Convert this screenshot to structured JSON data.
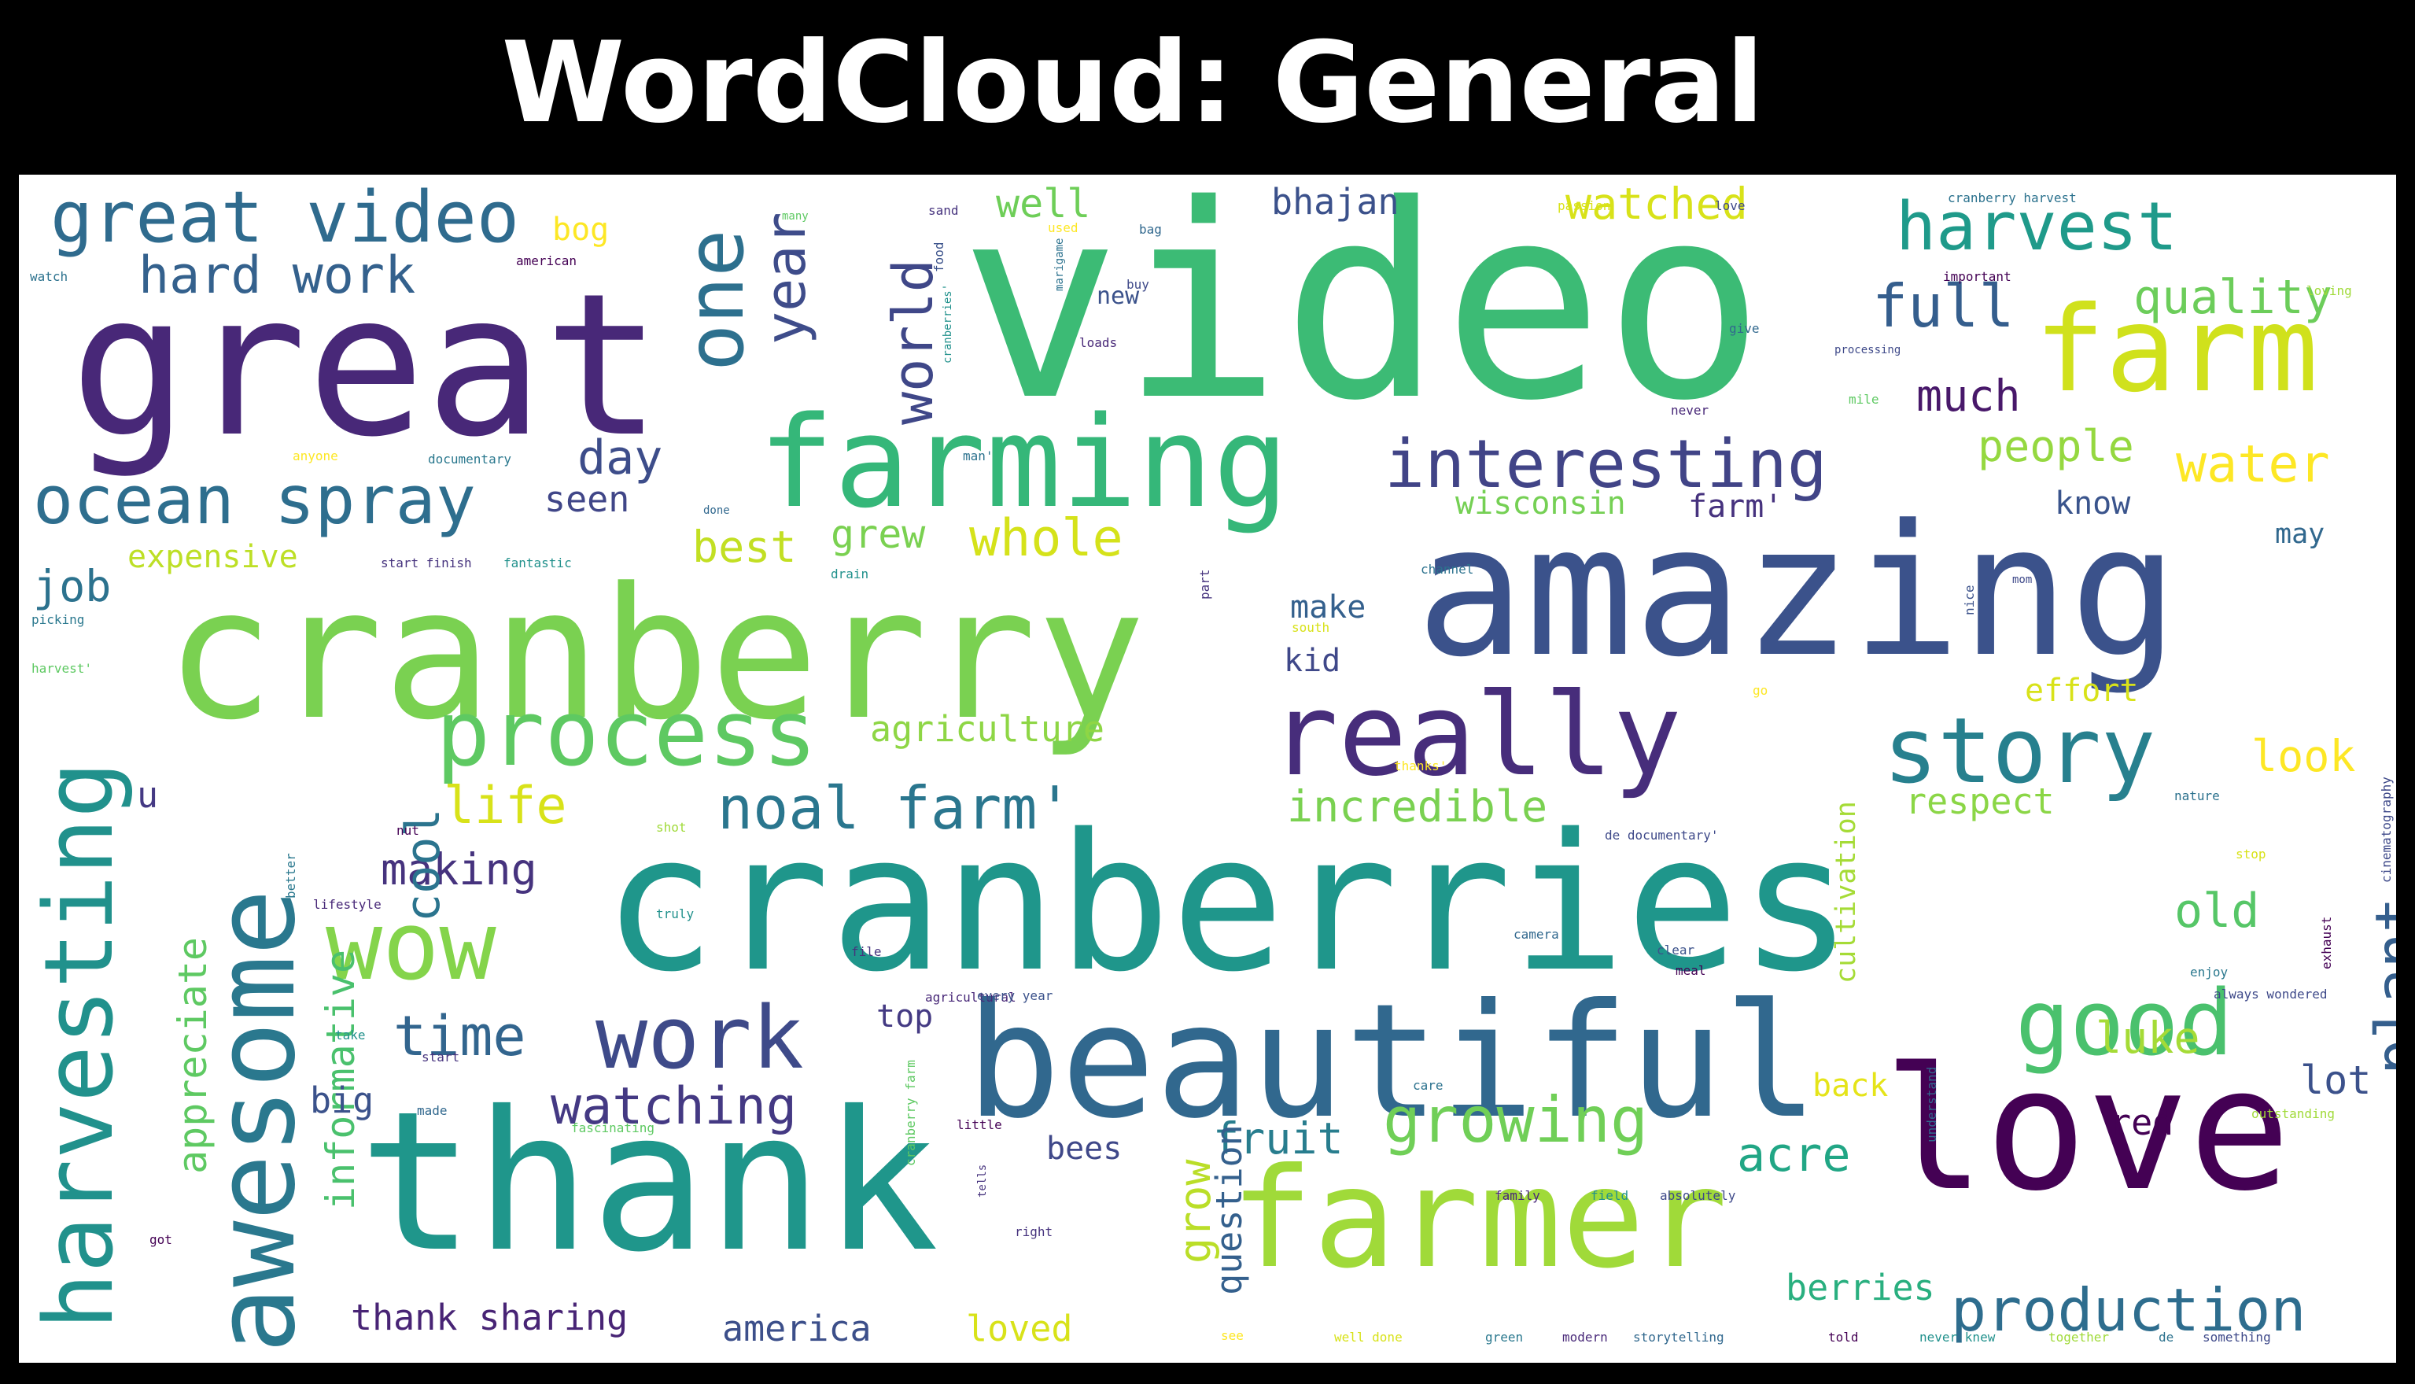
{
  "title": "WordCloud: General",
  "colors": {
    "background": "#000000",
    "panel": "#ffffff",
    "title": "#ffffff"
  },
  "words": [
    {
      "text": "video",
      "size": 340,
      "color": "#3cbb75"
    },
    {
      "text": "great",
      "size": 250,
      "color": "#482878"
    },
    {
      "text": "cranberry",
      "size": 230,
      "color": "#7ad151"
    },
    {
      "text": "amazing",
      "size": 230,
      "color": "#3b528b"
    },
    {
      "text": "cranberries",
      "size": 240,
      "color": "#1f968b"
    },
    {
      "text": "thank",
      "size": 245,
      "color": "#1f968b"
    },
    {
      "text": "beautiful",
      "size": 200,
      "color": "#31688e"
    },
    {
      "text": "love",
      "size": 215,
      "color": "#440154"
    },
    {
      "text": "farmer",
      "size": 175,
      "color": "#a0da39"
    },
    {
      "text": "farming",
      "size": 160,
      "color": "#35b779"
    },
    {
      "text": "really",
      "size": 145,
      "color": "#472d7b"
    },
    {
      "text": "farm",
      "size": 150,
      "color": "#d0e11c"
    },
    {
      "text": "awesome",
      "size": 140,
      "color": "#2a788e"
    },
    {
      "text": "harvesting",
      "size": 120,
      "color": "#21918c"
    },
    {
      "text": "process",
      "size": 115,
      "color": "#5ec962"
    },
    {
      "text": "story",
      "size": 115,
      "color": "#27808e"
    },
    {
      "text": "wow",
      "size": 120,
      "color": "#84d44b"
    },
    {
      "text": "good",
      "size": 115,
      "color": "#4ac16d"
    },
    {
      "text": "work",
      "size": 110,
      "color": "#3e4a89"
    },
    {
      "text": "great video",
      "size": 90,
      "color": "#2f6b8e"
    },
    {
      "text": "one",
      "size": 100,
      "color": "#2d708e"
    },
    {
      "text": "harvest",
      "size": 85,
      "color": "#1f9a8a"
    },
    {
      "text": "interesting",
      "size": 85,
      "color": "#414487"
    },
    {
      "text": "ocean spray",
      "size": 85,
      "color": "#2e6e8e"
    },
    {
      "text": "hard work",
      "size": 65,
      "color": "#34618d"
    },
    {
      "text": "year",
      "size": 70,
      "color": "#3e4c8a"
    },
    {
      "text": "world",
      "size": 70,
      "color": "#3f4788"
    },
    {
      "text": "full",
      "size": 75,
      "color": "#355e8d"
    },
    {
      "text": "quality",
      "size": 60,
      "color": "#6ccd5a"
    },
    {
      "text": "watched",
      "size": 55,
      "color": "#d8e219"
    },
    {
      "text": "well",
      "size": 50,
      "color": "#6ece58"
    },
    {
      "text": "bhajan",
      "size": 45,
      "color": "#3b518b"
    },
    {
      "text": "much",
      "size": 55,
      "color": "#48186a"
    },
    {
      "text": "people",
      "size": 55,
      "color": "#95d840"
    },
    {
      "text": "water",
      "size": 65,
      "color": "#fde725"
    },
    {
      "text": "day",
      "size": 60,
      "color": "#3d4d8a"
    },
    {
      "text": "seen",
      "size": 45,
      "color": "#404688"
    },
    {
      "text": "wisconsin",
      "size": 40,
      "color": "#75d054"
    },
    {
      "text": "farm'",
      "size": 40,
      "color": "#46327e"
    },
    {
      "text": "know",
      "size": 40,
      "color": "#3a548c"
    },
    {
      "text": "job",
      "size": 55,
      "color": "#2c728e"
    },
    {
      "text": "expensive",
      "size": 40,
      "color": "#bddf26"
    },
    {
      "text": "grew",
      "size": 50,
      "color": "#7ad151"
    },
    {
      "text": "best",
      "size": 55,
      "color": "#c2df23"
    },
    {
      "text": "whole",
      "size": 65,
      "color": "#d5e21a"
    },
    {
      "text": "make",
      "size": 40,
      "color": "#34608d"
    },
    {
      "text": "kid",
      "size": 40,
      "color": "#3f4889"
    },
    {
      "text": "effort",
      "size": 40,
      "color": "#d8e219"
    },
    {
      "text": "look",
      "size": 55,
      "color": "#fde725"
    },
    {
      "text": "respect",
      "size": 45,
      "color": "#8bd646"
    },
    {
      "text": "agriculture",
      "size": 45,
      "color": "#8ed645"
    },
    {
      "text": "noal farm'",
      "size": 75,
      "color": "#2a768e"
    },
    {
      "text": "incredible",
      "size": 55,
      "color": "#7ad151"
    },
    {
      "text": "life",
      "size": 65,
      "color": "#d8e219"
    },
    {
      "text": "making",
      "size": 55,
      "color": "#46337e"
    },
    {
      "text": "cool",
      "size": 60,
      "color": "#2b748e"
    },
    {
      "text": "plant",
      "size": 75,
      "color": "#355f8d"
    },
    {
      "text": "old",
      "size": 60,
      "color": "#56c667"
    },
    {
      "text": "time",
      "size": 70,
      "color": "#32658e"
    },
    {
      "text": "watching",
      "size": 65,
      "color": "#443983"
    },
    {
      "text": "top",
      "size": 40,
      "color": "#443a83"
    },
    {
      "text": "luke",
      "size": 55,
      "color": "#a5db36"
    },
    {
      "text": "back",
      "size": 40,
      "color": "#e5e419"
    },
    {
      "text": "lot",
      "size": 50,
      "color": "#3b518b"
    },
    {
      "text": "red",
      "size": 45,
      "color": "#440154"
    },
    {
      "text": "appreciate",
      "size": 50,
      "color": "#5ec962"
    },
    {
      "text": "informative",
      "size": 50,
      "color": "#4ac16d"
    },
    {
      "text": "big",
      "size": 45,
      "color": "#3b528b"
    },
    {
      "text": "fruit",
      "size": 55,
      "color": "#287d8e"
    },
    {
      "text": "growing",
      "size": 80,
      "color": "#70cf57"
    },
    {
      "text": "acre",
      "size": 60,
      "color": "#21a685"
    },
    {
      "text": "bees",
      "size": 40,
      "color": "#3f4889"
    },
    {
      "text": "grow",
      "size": 55,
      "color": "#bade28"
    },
    {
      "text": "question",
      "size": 45,
      "color": "#34608d"
    },
    {
      "text": "thank sharing",
      "size": 45,
      "color": "#482475"
    },
    {
      "text": "america",
      "size": 45,
      "color": "#3c4f8a"
    },
    {
      "text": "loved",
      "size": 45,
      "color": "#d8e219"
    },
    {
      "text": "berries",
      "size": 45,
      "color": "#29af7f"
    },
    {
      "text": "production",
      "size": 75,
      "color": "#2e6d8e"
    },
    {
      "text": "cultivation",
      "size": 35,
      "color": "#a5db36"
    },
    {
      "text": "u",
      "size": 45,
      "color": "#443983"
    },
    {
      "text": "bog",
      "size": 40,
      "color": "#fde725"
    },
    {
      "text": "american",
      "size": 16,
      "color": "#440154"
    },
    {
      "text": "watch",
      "size": 16,
      "color": "#2c728e"
    },
    {
      "text": "many",
      "size": 14,
      "color": "#5ec962"
    },
    {
      "text": "food",
      "size": 16,
      "color": "#3b528b"
    },
    {
      "text": "used",
      "size": 16,
      "color": "#fde725"
    },
    {
      "text": "sand",
      "size": 16,
      "color": "#46337e"
    },
    {
      "text": "bag",
      "size": 16,
      "color": "#31688e"
    },
    {
      "text": "buy",
      "size": 16,
      "color": "#3e4989"
    },
    {
      "text": "new",
      "size": 30,
      "color": "#3b528b"
    },
    {
      "text": "loads",
      "size": 16,
      "color": "#482878"
    },
    {
      "text": "documentary",
      "size": 16,
      "color": "#2a788e"
    },
    {
      "text": "anyone",
      "size": 16,
      "color": "#fde725"
    },
    {
      "text": "done",
      "size": 14,
      "color": "#31688e"
    },
    {
      "text": "start finish",
      "size": 16,
      "color": "#46337e"
    },
    {
      "text": "fantastic",
      "size": 16,
      "color": "#21918c"
    },
    {
      "text": "passion",
      "size": 16,
      "color": "#d8e219"
    },
    {
      "text": "love",
      "size": 16,
      "color": "#3e4989"
    },
    {
      "text": "cranberry harvest",
      "size": 16,
      "color": "#2c728e"
    },
    {
      "text": "important",
      "size": 16,
      "color": "#440154"
    },
    {
      "text": "give",
      "size": 16,
      "color": "#31688e"
    },
    {
      "text": "processing",
      "size": 14,
      "color": "#3e4989"
    },
    {
      "text": "mile",
      "size": 16,
      "color": "#5ec962"
    },
    {
      "text": "never",
      "size": 16,
      "color": "#482878"
    },
    {
      "text": "loving",
      "size": 16,
      "color": "#a0da39"
    },
    {
      "text": "may",
      "size": 35,
      "color": "#31688e"
    },
    {
      "text": "channel",
      "size": 16,
      "color": "#2c728e"
    },
    {
      "text": "south",
      "size": 16,
      "color": "#d8e219"
    },
    {
      "text": "drain",
      "size": 16,
      "color": "#21918c"
    },
    {
      "text": "mom",
      "size": 14,
      "color": "#3e4989"
    },
    {
      "text": "picking",
      "size": 16,
      "color": "#2a788e"
    },
    {
      "text": "harvest'",
      "size": 16,
      "color": "#5ec962"
    },
    {
      "text": "go",
      "size": 16,
      "color": "#fde725"
    },
    {
      "text": "thanks'",
      "size": 16,
      "color": "#fde725"
    },
    {
      "text": "nature",
      "size": 16,
      "color": "#2c728e"
    },
    {
      "text": "shot",
      "size": 16,
      "color": "#a0da39"
    },
    {
      "text": "nut",
      "size": 16,
      "color": "#440154"
    },
    {
      "text": "de documentary'",
      "size": 16,
      "color": "#3e4989"
    },
    {
      "text": "stop",
      "size": 16,
      "color": "#d8e219"
    },
    {
      "text": "lifestyle",
      "size": 16,
      "color": "#482878"
    },
    {
      "text": "truly",
      "size": 16,
      "color": "#21918c"
    },
    {
      "text": "camera",
      "size": 16,
      "color": "#31688e"
    },
    {
      "text": "file",
      "size": 16,
      "color": "#46337e"
    },
    {
      "text": "clear",
      "size": 16,
      "color": "#3b528b"
    },
    {
      "text": "meal",
      "size": 16,
      "color": "#440154"
    },
    {
      "text": "enjoy",
      "size": 16,
      "color": "#2a788e"
    },
    {
      "text": "always wondered",
      "size": 16,
      "color": "#3e4989"
    },
    {
      "text": "agricultural",
      "size": 16,
      "color": "#482878"
    },
    {
      "text": "every year",
      "size": 16,
      "color": "#3b528b"
    },
    {
      "text": "take",
      "size": 16,
      "color": "#21918c"
    },
    {
      "text": "start",
      "size": 16,
      "color": "#46337e"
    },
    {
      "text": "made",
      "size": 16,
      "color": "#31688e"
    },
    {
      "text": "fascinating",
      "size": 16,
      "color": "#5ec962"
    },
    {
      "text": "little",
      "size": 16,
      "color": "#440154"
    },
    {
      "text": "care",
      "size": 16,
      "color": "#2c728e"
    },
    {
      "text": "outstanding",
      "size": 16,
      "color": "#a0da39"
    },
    {
      "text": "family",
      "size": 16,
      "color": "#482878"
    },
    {
      "text": "field",
      "size": 16,
      "color": "#21918c"
    },
    {
      "text": "absolutely",
      "size": 16,
      "color": "#3e4989"
    },
    {
      "text": "right",
      "size": 16,
      "color": "#46337e"
    },
    {
      "text": "got",
      "size": 16,
      "color": "#440154"
    },
    {
      "text": "see",
      "size": 16,
      "color": "#fde725"
    },
    {
      "text": "well done",
      "size": 16,
      "color": "#d8e219"
    },
    {
      "text": "green",
      "size": 16,
      "color": "#2a788e"
    },
    {
      "text": "modern",
      "size": 16,
      "color": "#482878"
    },
    {
      "text": "storytelling",
      "size": 16,
      "color": "#31688e"
    },
    {
      "text": "told",
      "size": 16,
      "color": "#440154"
    },
    {
      "text": "never knew",
      "size": 16,
      "color": "#21918c"
    },
    {
      "text": "together",
      "size": 16,
      "color": "#a0da39"
    },
    {
      "text": "de",
      "size": 16,
      "color": "#2c728e"
    },
    {
      "text": "something",
      "size": 16,
      "color": "#3e4989"
    },
    {
      "text": "man'",
      "size": 16,
      "color": "#2c728e"
    },
    {
      "text": "part",
      "size": 16,
      "color": "#46337e"
    },
    {
      "text": "nice",
      "size": 16,
      "color": "#3b528b"
    },
    {
      "text": "cinematography",
      "size": 16,
      "color": "#3e4989"
    },
    {
      "text": "exhaust",
      "size": 16,
      "color": "#440154"
    },
    {
      "text": "better",
      "size": 16,
      "color": "#2a788e"
    },
    {
      "text": "understand",
      "size": 16,
      "color": "#31688e"
    },
    {
      "text": "cranberry farm",
      "size": 16,
      "color": "#5ec962"
    },
    {
      "text": "cranberries'",
      "size": 14,
      "color": "#21918c"
    },
    {
      "text": "marigame",
      "size": 14,
      "color": "#2c728e"
    },
    {
      "text": "tells",
      "size": 14,
      "color": "#46337e"
    }
  ]
}
